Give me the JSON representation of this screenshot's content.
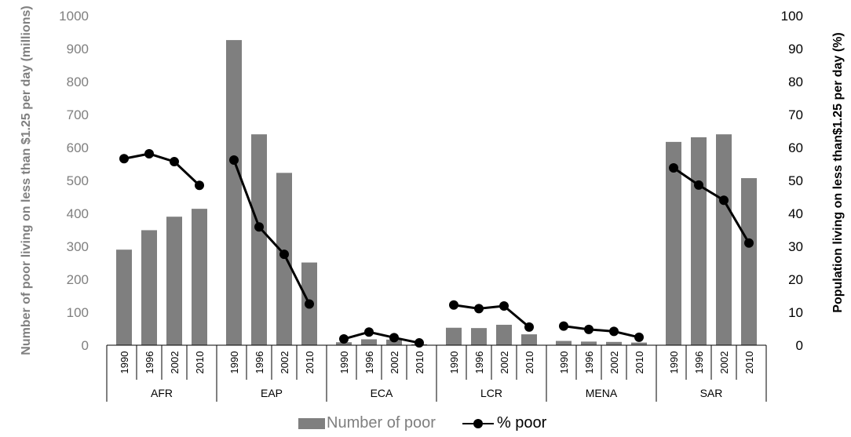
{
  "chart_data": {
    "type": "bar+line",
    "title": "",
    "left_axis": {
      "label": "Number of poor living on less than $1.25 per day (millions)",
      "ylim": [
        0,
        1000
      ],
      "ticks": [
        "0",
        "100",
        "200",
        "300",
        "400",
        "500",
        "600",
        "700",
        "800",
        "900",
        "1000"
      ]
    },
    "right_axis": {
      "label": "Population living on less than$1.25 per day (%)",
      "ylim": [
        0,
        100
      ],
      "ticks": [
        "0",
        "10",
        "20",
        "30",
        "40",
        "50",
        "60",
        "70",
        "80",
        "90",
        "100"
      ]
    },
    "years": [
      "1990",
      "1996",
      "2002",
      "2010"
    ],
    "regions": [
      "AFR",
      "EAP",
      "ECA",
      "LCR",
      "MENA",
      "SAR"
    ],
    "series": [
      {
        "name": "Number of poor",
        "kind": "bar",
        "color": "#7f7f7f",
        "values": [
          [
            290,
            349,
            390,
            414
          ],
          [
            926,
            640,
            523,
            251
          ],
          [
            9,
            18,
            17,
            3
          ],
          [
            53,
            52,
            62,
            33
          ],
          [
            13,
            11,
            10,
            8
          ],
          [
            617,
            631,
            640,
            507
          ]
        ]
      },
      {
        "name": "% poor",
        "kind": "line",
        "color": "#000000",
        "values": [
          [
            56.6,
            58.1,
            55.7,
            48.5
          ],
          [
            56.2,
            35.9,
            27.6,
            12.5
          ],
          [
            1.9,
            4.0,
            2.3,
            0.7
          ],
          [
            12.2,
            11.1,
            11.9,
            5.5
          ],
          [
            5.8,
            4.8,
            4.2,
            2.4
          ],
          [
            53.8,
            48.6,
            44.0,
            31.0
          ]
        ]
      }
    ],
    "grid": false,
    "legend_position": "bottom-center"
  },
  "legend": {
    "bar_label": "Number of poor",
    "line_label": "% poor"
  }
}
